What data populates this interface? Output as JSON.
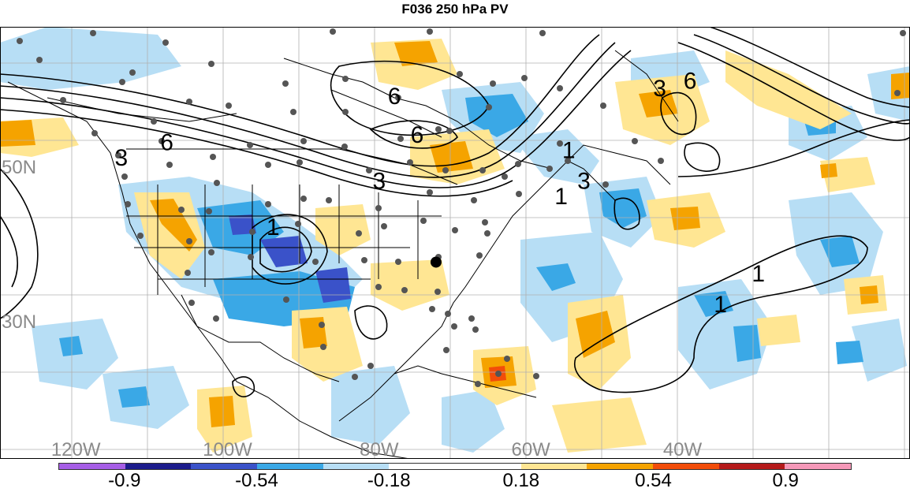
{
  "title": "F036 250 hPa PV",
  "lat_labels": [
    {
      "text": "50N",
      "lat": 50
    },
    {
      "text": "30N",
      "lat": 30
    }
  ],
  "lon_labels": [
    {
      "text": "120W",
      "lon": -120
    },
    {
      "text": "100W",
      "lon": -100
    },
    {
      "text": "80W",
      "lon": -80
    },
    {
      "text": "60W",
      "lon": -60
    },
    {
      "text": "40W",
      "lon": -40
    }
  ],
  "contour_labels": [
    {
      "text": "6",
      "lon": -78,
      "lat": 58
    },
    {
      "text": "6",
      "lon": -108,
      "lat": 52
    },
    {
      "text": "3",
      "lon": -114,
      "lat": 50
    },
    {
      "text": "6",
      "lon": -75,
      "lat": 53
    },
    {
      "text": "3",
      "lon": -80,
      "lat": 47
    },
    {
      "text": "1",
      "lon": -94,
      "lat": 41
    },
    {
      "text": "6",
      "lon": -39,
      "lat": 60
    },
    {
      "text": "3",
      "lon": -43,
      "lat": 59
    },
    {
      "text": "1",
      "lon": -55,
      "lat": 51
    },
    {
      "text": "3",
      "lon": -53,
      "lat": 47
    },
    {
      "text": "1",
      "lon": -56,
      "lat": 45
    },
    {
      "text": "1",
      "lon": -30,
      "lat": 35
    },
    {
      "text": "1",
      "lon": -35,
      "lat": 31
    }
  ],
  "storm_marker": {
    "lon": -72.5,
    "lat": 37.5
  },
  "colorbar": {
    "colors": [
      "#a65ee6",
      "#1c1c8c",
      "#3a52c9",
      "#3aa8e6",
      "#b7def5",
      "#ffffff",
      "#ffffff",
      "#ffe693",
      "#f5a300",
      "#f24d0a",
      "#b51a1a",
      "#f598b8"
    ],
    "ticks": [
      {
        "text": "-0.9",
        "pos": 0.0833
      },
      {
        "text": "-0.54",
        "pos": 0.25
      },
      {
        "text": "-0.18",
        "pos": 0.4167
      },
      {
        "text": "0.18",
        "pos": 0.5833
      },
      {
        "text": "0.54",
        "pos": 0.75
      },
      {
        "text": "0.9",
        "pos": 0.9167
      }
    ]
  }
}
